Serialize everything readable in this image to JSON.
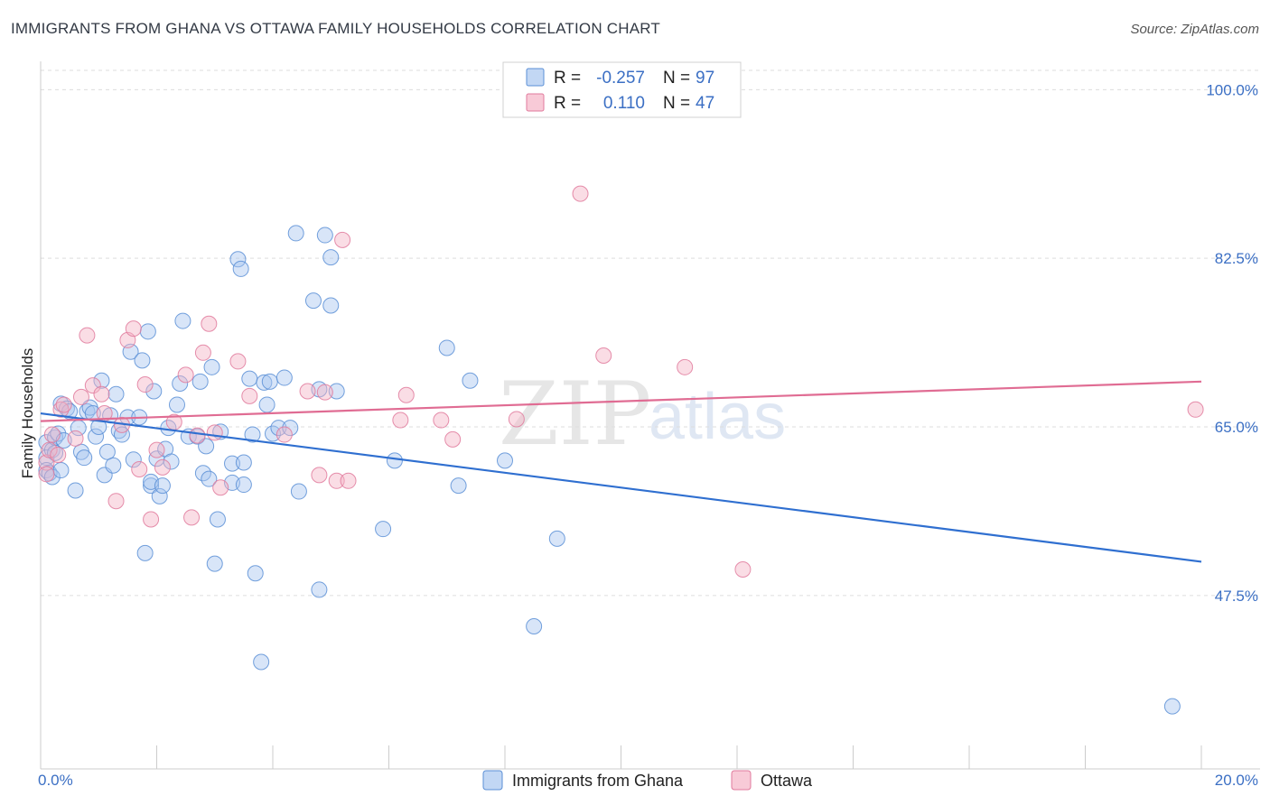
{
  "title": "IMMIGRANTS FROM GHANA VS OTTAWA FAMILY HOUSEHOLDS CORRELATION CHART",
  "source": "Source: ZipAtlas.com",
  "watermark": {
    "zip": "ZIP",
    "atlas": "atlas"
  },
  "legend": {
    "rows": [
      {
        "r_label": "R =",
        "r_value": "-0.257",
        "n_label": "N =",
        "n_value": "97",
        "color": "#a8c6f0"
      },
      {
        "r_label": "R =",
        "r_value": "0.110",
        "n_label": "N =",
        "n_value": "47",
        "color": "#f5b3c6"
      }
    ]
  },
  "colors": {
    "blue_fill": "#a8c6f0",
    "blue_stroke": "#5b8fd6",
    "blue_line": "#2f6fd0",
    "pink_fill": "#f5b3c6",
    "pink_stroke": "#e07a9c",
    "pink_line": "#e06c93",
    "tick_label": "#3b6fc4",
    "grid": "#dddddd"
  },
  "chart_data": {
    "type": "scatter",
    "ylabel": "Family Households",
    "xlim": [
      0.0,
      20.0
    ],
    "ylim": [
      29.5,
      102.0
    ],
    "x_tick_labels": [
      {
        "value": 0.0,
        "label": "0.0%"
      },
      {
        "value": 20.0,
        "label": "20.0%"
      }
    ],
    "y_ticks": [
      {
        "value": 100.0,
        "label": "100.0%"
      },
      {
        "value": 82.5,
        "label": "82.5%"
      },
      {
        "value": 65.0,
        "label": "65.0%"
      },
      {
        "value": 47.5,
        "label": "47.5%"
      }
    ],
    "series": [
      {
        "name": "Immigrants from Ghana",
        "color": "#a8c6f0",
        "trend": {
          "x": [
            0.0,
            20.0
          ],
          "y": [
            66.4,
            51.0
          ]
        },
        "points": [
          [
            0.1,
            63.4
          ],
          [
            0.1,
            61.8
          ],
          [
            0.1,
            60.5
          ],
          [
            0.15,
            60.2
          ],
          [
            0.2,
            62.6
          ],
          [
            0.2,
            59.8
          ],
          [
            0.25,
            63.9
          ],
          [
            0.25,
            62.3
          ],
          [
            0.3,
            64.3
          ],
          [
            0.35,
            60.5
          ],
          [
            0.35,
            67.4
          ],
          [
            0.4,
            63.6
          ],
          [
            0.45,
            66.9
          ],
          [
            0.5,
            66.6
          ],
          [
            0.6,
            58.4
          ],
          [
            0.65,
            64.9
          ],
          [
            0.7,
            62.4
          ],
          [
            0.75,
            61.8
          ],
          [
            0.8,
            66.6
          ],
          [
            0.85,
            67.0
          ],
          [
            0.9,
            66.4
          ],
          [
            0.95,
            64.0
          ],
          [
            1.0,
            65.0
          ],
          [
            1.05,
            69.8
          ],
          [
            1.1,
            60.0
          ],
          [
            1.15,
            62.4
          ],
          [
            1.2,
            66.2
          ],
          [
            1.25,
            61.0
          ],
          [
            1.3,
            68.4
          ],
          [
            1.35,
            64.6
          ],
          [
            1.4,
            64.2
          ],
          [
            1.5,
            66.0
          ],
          [
            1.55,
            72.8
          ],
          [
            1.6,
            61.6
          ],
          [
            1.7,
            66.0
          ],
          [
            1.75,
            71.9
          ],
          [
            1.8,
            51.9
          ],
          [
            1.85,
            74.9
          ],
          [
            1.9,
            58.9
          ],
          [
            1.9,
            59.3
          ],
          [
            1.95,
            68.7
          ],
          [
            2.0,
            61.7
          ],
          [
            2.05,
            57.8
          ],
          [
            2.1,
            58.9
          ],
          [
            2.15,
            62.7
          ],
          [
            2.2,
            64.9
          ],
          [
            2.25,
            61.4
          ],
          [
            2.35,
            67.3
          ],
          [
            2.4,
            69.5
          ],
          [
            2.45,
            76.0
          ],
          [
            2.55,
            64.0
          ],
          [
            2.7,
            64.0
          ],
          [
            2.75,
            69.7
          ],
          [
            2.8,
            60.2
          ],
          [
            2.85,
            63.0
          ],
          [
            2.9,
            59.6
          ],
          [
            2.95,
            71.2
          ],
          [
            3.0,
            50.8
          ],
          [
            3.05,
            55.4
          ],
          [
            3.1,
            64.5
          ],
          [
            3.3,
            61.2
          ],
          [
            3.3,
            59.2
          ],
          [
            3.4,
            82.4
          ],
          [
            3.45,
            81.4
          ],
          [
            3.5,
            61.3
          ],
          [
            3.5,
            59.0
          ],
          [
            3.6,
            70.0
          ],
          [
            3.65,
            64.2
          ],
          [
            3.7,
            49.8
          ],
          [
            3.8,
            40.6
          ],
          [
            3.85,
            69.6
          ],
          [
            3.9,
            67.3
          ],
          [
            3.95,
            69.7
          ],
          [
            4.0,
            64.3
          ],
          [
            4.1,
            64.9
          ],
          [
            4.2,
            70.1
          ],
          [
            4.3,
            64.9
          ],
          [
            4.4,
            85.1
          ],
          [
            4.45,
            58.3
          ],
          [
            4.7,
            78.1
          ],
          [
            4.8,
            68.9
          ],
          [
            4.8,
            48.1
          ],
          [
            4.9,
            84.9
          ],
          [
            5.0,
            77.6
          ],
          [
            5.0,
            82.6
          ],
          [
            5.1,
            68.7
          ],
          [
            5.9,
            54.4
          ],
          [
            6.1,
            61.5
          ],
          [
            7.0,
            73.2
          ],
          [
            7.2,
            58.9
          ],
          [
            7.4,
            69.8
          ],
          [
            8.0,
            61.5
          ],
          [
            8.5,
            44.3
          ],
          [
            8.9,
            53.4
          ],
          [
            19.5,
            36.0
          ]
        ]
      },
      {
        "name": "Ottawa",
        "color": "#f5b3c6",
        "trend": {
          "x": [
            0.0,
            20.0
          ],
          "y": [
            65.6,
            69.7
          ]
        },
        "points": [
          [
            0.1,
            61.3
          ],
          [
            0.1,
            60.1
          ],
          [
            0.15,
            62.6
          ],
          [
            0.2,
            64.2
          ],
          [
            0.3,
            62.1
          ],
          [
            0.35,
            66.8
          ],
          [
            0.4,
            67.3
          ],
          [
            0.6,
            63.8
          ],
          [
            0.7,
            68.1
          ],
          [
            0.8,
            74.5
          ],
          [
            0.9,
            69.3
          ],
          [
            1.05,
            68.4
          ],
          [
            1.1,
            66.4
          ],
          [
            1.3,
            57.3
          ],
          [
            1.4,
            65.2
          ],
          [
            1.5,
            74.0
          ],
          [
            1.6,
            75.2
          ],
          [
            1.7,
            60.6
          ],
          [
            1.8,
            69.4
          ],
          [
            1.9,
            55.4
          ],
          [
            2.0,
            62.6
          ],
          [
            2.1,
            60.8
          ],
          [
            2.3,
            65.5
          ],
          [
            2.5,
            70.4
          ],
          [
            2.6,
            55.6
          ],
          [
            2.7,
            64.1
          ],
          [
            2.8,
            72.7
          ],
          [
            2.9,
            75.7
          ],
          [
            3.0,
            64.4
          ],
          [
            3.1,
            58.7
          ],
          [
            3.4,
            71.8
          ],
          [
            3.6,
            68.2
          ],
          [
            4.2,
            64.2
          ],
          [
            4.6,
            68.7
          ],
          [
            4.9,
            68.6
          ],
          [
            4.8,
            60.0
          ],
          [
            5.1,
            59.4
          ],
          [
            5.2,
            84.4
          ],
          [
            5.3,
            59.4
          ],
          [
            6.2,
            65.7
          ],
          [
            6.3,
            68.3
          ],
          [
            6.9,
            65.7
          ],
          [
            7.1,
            63.7
          ],
          [
            8.2,
            65.8
          ],
          [
            9.3,
            89.2
          ],
          [
            9.7,
            72.4
          ],
          [
            11.1,
            71.2
          ],
          [
            12.1,
            50.2
          ],
          [
            19.9,
            66.8
          ]
        ]
      }
    ]
  },
  "bottom_legend": [
    {
      "label": "Immigrants from Ghana",
      "color": "#a8c6f0"
    },
    {
      "label": "Ottawa",
      "color": "#f5b3c6"
    }
  ]
}
